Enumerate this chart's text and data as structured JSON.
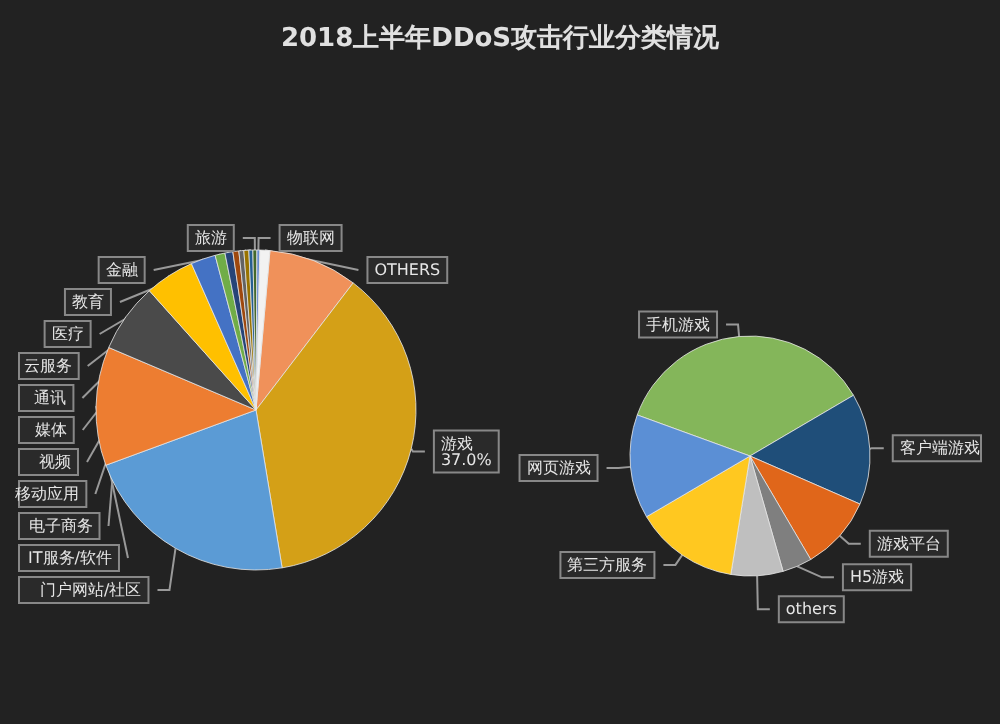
{
  "chart_data": [
    {
      "type": "pie",
      "title": "2018上半年DDoS攻击行业分类情况",
      "categories": [
        null,
        "游戏",
        "门户网站/社区",
        "IT服务/软件",
        "电子商务",
        "移动应用",
        "视频",
        "媒体",
        "通讯",
        "云服务",
        "医疗",
        "教育",
        "金融",
        "旅游",
        "物联网",
        "OTHERS"
      ],
      "values": [
        9,
        37,
        22,
        12,
        7,
        5,
        2.5,
        1,
        0.8,
        0.6,
        0.5,
        0.5,
        0.4,
        0.4,
        0.3,
        1
      ],
      "colors": [
        "#f0915a",
        "#d4a017",
        "#5b9bd5",
        "#ed7d31",
        "#4a4a4a",
        "#ffc000",
        "#4472c4",
        "#70ad47",
        "#264478",
        "#9e480e",
        "#636363",
        "#997300",
        "#255e91",
        "#43682b",
        "#698ed0",
        "#f2f2f2"
      ],
      "value_labels": [
        null,
        "37.0%",
        null,
        null,
        null,
        null,
        null,
        null,
        null,
        null,
        null,
        null,
        null,
        null,
        null,
        null
      ]
    },
    {
      "type": "pie",
      "categories": [
        "手机游戏",
        "客户端游戏",
        "游戏平台",
        "H5游戏",
        "others",
        "第三方服务",
        "网页游戏"
      ],
      "values": [
        36,
        15,
        10,
        4,
        7,
        14,
        14
      ],
      "colors": [
        "#84b65a",
        "#1f4e79",
        "#e0661a",
        "#7f7f7f",
        "#bfbfbf",
        "#ffc820",
        "#5b8fd5"
      ]
    }
  ]
}
